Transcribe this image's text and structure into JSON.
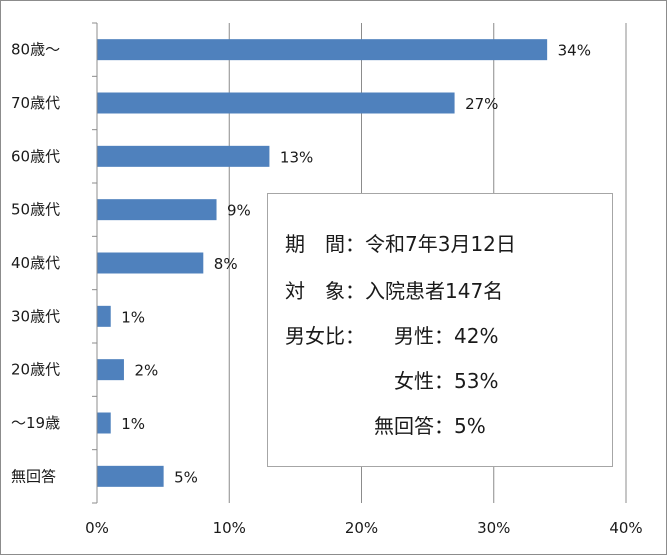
{
  "chart_data": {
    "type": "bar",
    "orientation": "horizontal",
    "categories": [
      "80歳～",
      "70歳代",
      "60歳代",
      "50歳代",
      "40歳代",
      "30歳代",
      "20歳代",
      "～19歳",
      "無回答"
    ],
    "values": [
      34,
      27,
      13,
      9,
      8,
      1,
      2,
      1,
      5
    ],
    "value_labels": [
      "34%",
      "27%",
      "13%",
      "9%",
      "8%",
      "1%",
      "2%",
      "1%",
      "5%"
    ],
    "x_ticks": [
      "0%",
      "10%",
      "20%",
      "30%",
      "40%"
    ],
    "xlim": [
      0,
      40
    ],
    "grid": "vertical",
    "bar_color": "#4f81bd",
    "title": "",
    "xlabel": "",
    "ylabel": ""
  },
  "info": {
    "period_label": "期　間：",
    "period_value": "令和7年3月12日",
    "target_label": "対　象：",
    "target_value": "入院患者147名",
    "ratio_label": "男女比：",
    "male_label": "男性：",
    "male_value": "42%",
    "female_label": "女性：",
    "female_value": "53%",
    "noanswer_label": "無回答：",
    "noanswer_value": "5%"
  }
}
